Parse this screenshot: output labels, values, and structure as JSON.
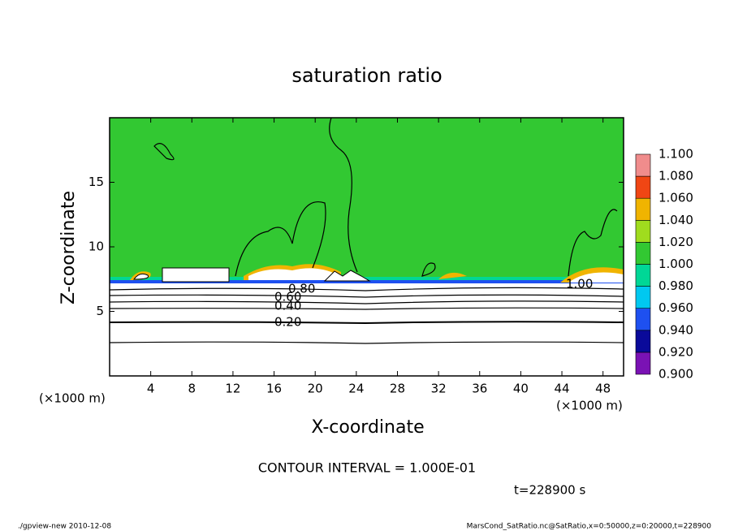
{
  "chart_data": {
    "type": "contour",
    "title": "saturation ratio",
    "x_label": "X-coordinate",
    "y_label": "Z-coordinate",
    "x_unit_label": "(×1000 m)",
    "y_unit_label": "(×1000 m)",
    "xlim": [
      0,
      50
    ],
    "xticks": [
      4,
      8,
      12,
      16,
      20,
      24,
      28,
      32,
      36,
      40,
      44,
      48
    ],
    "ylim": [
      0,
      20
    ],
    "yticks": [
      5,
      10,
      15
    ],
    "colorbar": {
      "levels": [
        {
          "value": 0.9,
          "label": "0.900"
        },
        {
          "value": 0.92,
          "label": "0.920"
        },
        {
          "value": 0.94,
          "label": "0.940"
        },
        {
          "value": 0.96,
          "label": "0.960"
        },
        {
          "value": 0.98,
          "label": "0.980"
        },
        {
          "value": 1.0,
          "label": "1.000"
        },
        {
          "value": 1.02,
          "label": "1.020"
        },
        {
          "value": 1.04,
          "label": "1.040"
        },
        {
          "value": 1.06,
          "label": "1.060"
        },
        {
          "value": 1.08,
          "label": "1.080"
        },
        {
          "value": 1.1,
          "label": "1.100"
        }
      ],
      "colors": [
        "#7a12b4",
        "#0a0a9a",
        "#1e50f0",
        "#00c8f0",
        "#00d796",
        "#32c832",
        "#a0dc1e",
        "#f0b400",
        "#f04614",
        "#f08c8c"
      ]
    },
    "contour_labels": [
      "0.80",
      "0.60",
      "0.40",
      "0.20",
      "1.00"
    ],
    "annotation": "CONTOUR INTERVAL = 1.000E-01",
    "time_label": "t=228900 s",
    "footer_left": "./gpview-new  2010-12-08",
    "footer_right": "MarsCond_SatRatio.nc@SatRatio,x=0:50000,z=0:20000,t=228900"
  }
}
